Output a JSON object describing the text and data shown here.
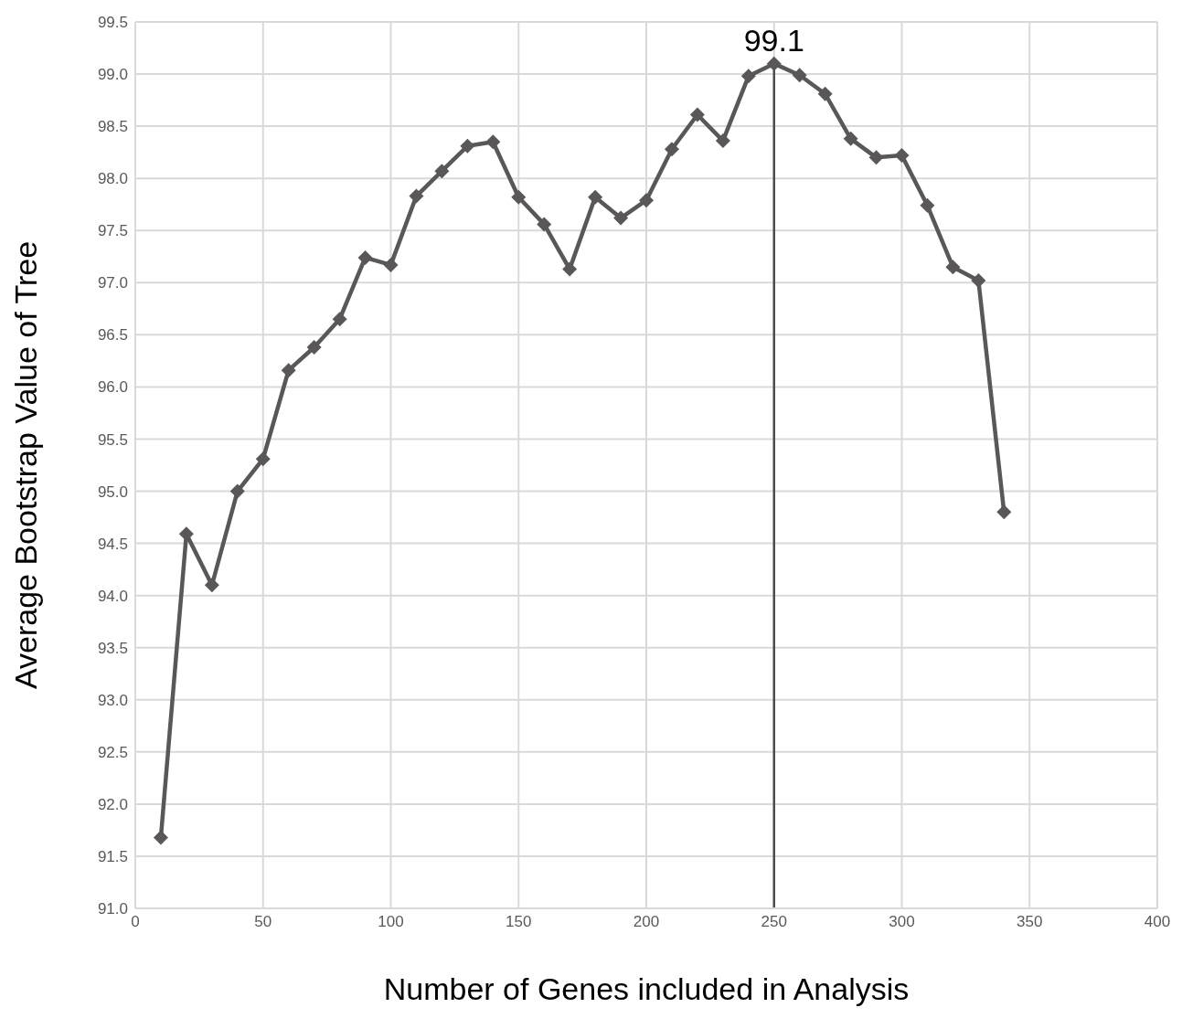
{
  "chart_data": {
    "type": "line",
    "xlabel": "Number of Genes included in Analysis",
    "ylabel": "Average Bootstrap Value of Tree",
    "x": [
      10,
      20,
      30,
      40,
      50,
      60,
      70,
      80,
      90,
      100,
      110,
      120,
      130,
      140,
      150,
      160,
      170,
      180,
      190,
      200,
      210,
      220,
      230,
      240,
      250,
      260,
      270,
      280,
      290,
      300,
      310,
      320,
      330,
      340
    ],
    "series": [
      {
        "color": "#595757",
        "values": [
          91.68,
          94.59,
          94.1,
          95.0,
          95.31,
          96.16,
          96.38,
          96.65,
          97.24,
          97.17,
          97.83,
          98.07,
          98.31,
          98.35,
          97.82,
          97.56,
          97.13,
          97.82,
          97.62,
          97.79,
          98.28,
          98.61,
          98.36,
          98.98,
          99.1,
          98.99,
          98.81,
          98.38,
          98.2,
          98.22,
          97.74,
          97.15,
          97.02,
          94.8
        ],
        "value_labels": [
          null,
          null,
          null,
          null,
          null,
          null,
          null,
          null,
          null,
          null,
          null,
          null,
          null,
          null,
          null,
          null,
          null,
          null,
          null,
          null,
          null,
          null,
          null,
          null,
          "99.1",
          null,
          null,
          null,
          null,
          null,
          null,
          null,
          null,
          null
        ]
      }
    ],
    "xlim": [
      0,
      400
    ],
    "xticks": [
      0,
      50,
      100,
      150,
      200,
      250,
      300,
      350,
      400
    ],
    "ylim": [
      91,
      99.5
    ],
    "yticks": [
      {
        "value": 91,
        "label": "91.0"
      },
      {
        "value": 91.5,
        "label": "91.5"
      },
      {
        "value": 92,
        "label": "92.0"
      },
      {
        "value": 92.5,
        "label": "92.5"
      },
      {
        "value": 93,
        "label": "93.0"
      },
      {
        "value": 93.5,
        "label": "93.5"
      },
      {
        "value": 94,
        "label": "94.0"
      },
      {
        "value": 94.5,
        "label": "94.5"
      },
      {
        "value": 95,
        "label": "95.0"
      },
      {
        "value": 95.5,
        "label": "95.5"
      },
      {
        "value": 96,
        "label": "96.0"
      },
      {
        "value": 96.5,
        "label": "96.5"
      },
      {
        "value": 97,
        "label": "97.0"
      },
      {
        "value": 97.5,
        "label": "97.5"
      },
      {
        "value": 98,
        "label": "98.0"
      },
      {
        "value": 98.5,
        "label": "98.5"
      },
      {
        "value": 99,
        "label": "99.0"
      },
      {
        "value": 99.5,
        "label": "99.5"
      }
    ],
    "ref_lines": [
      {
        "axis": "x",
        "value": 250,
        "color": "#4d4d4d"
      }
    ],
    "grid": true,
    "marker": "diamond",
    "line_style": "solid"
  }
}
